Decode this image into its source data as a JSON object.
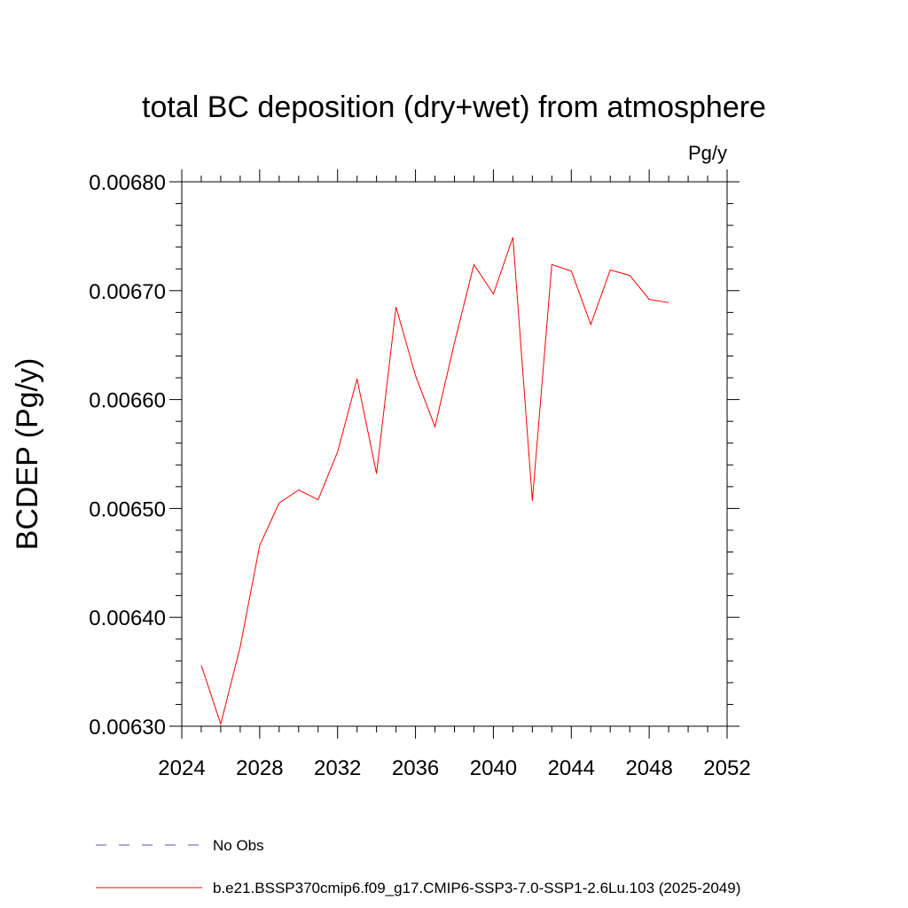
{
  "chart_data": {
    "type": "line",
    "title": "total BC deposition (dry+wet) from atmosphere",
    "units_label": "Pg/y",
    "ylabel": "BCDEP  (Pg/y)",
    "xlabel": "",
    "xlim": [
      2024,
      2052
    ],
    "ylim": [
      0.0063,
      0.0068
    ],
    "x_ticks": [
      2024,
      2028,
      2032,
      2036,
      2040,
      2044,
      2048,
      2052
    ],
    "x_tick_labels": [
      "2024",
      "2028",
      "2032",
      "2036",
      "2040",
      "2044",
      "2048",
      "2052"
    ],
    "y_ticks": [
      0.0063,
      0.0064,
      0.0065,
      0.0066,
      0.0067,
      0.0068
    ],
    "y_tick_labels": [
      "0.00630",
      "0.00640",
      "0.00650",
      "0.00660",
      "0.00670",
      "0.00680"
    ],
    "grid": false,
    "legend_position": "bottom",
    "series": [
      {
        "name": "b.e21.BSSP370cmip6.f09_g17.CMIP6-SSP3-7.0-SSP1-2.6Lu.103 (2025-2049)",
        "color": "#ff0000",
        "style": "solid",
        "x": [
          2025,
          2026,
          2027,
          2028,
          2029,
          2030,
          2031,
          2032,
          2033,
          2034,
          2035,
          2036,
          2037,
          2038,
          2039,
          2040,
          2041,
          2042,
          2043,
          2044,
          2045,
          2046,
          2047,
          2048,
          2049
        ],
        "y": [
          0.006356,
          0.006302,
          0.006373,
          0.006466,
          0.006505,
          0.006517,
          0.006508,
          0.006552,
          0.006619,
          0.006532,
          0.006685,
          0.006622,
          0.006575,
          0.006652,
          0.006724,
          0.006697,
          0.006749,
          0.006507,
          0.006724,
          0.006718,
          0.006669,
          0.006719,
          0.006714,
          0.006692,
          0.006689
        ]
      }
    ],
    "legend": [
      {
        "label": "No Obs",
        "color": "#5b4fa8",
        "style": "dashed"
      },
      {
        "label": "b.e21.BSSP370cmip6.f09_g17.CMIP6-SSP3-7.0-SSP1-2.6Lu.103 (2025-2049)",
        "color": "#ff0000",
        "style": "solid"
      }
    ]
  }
}
